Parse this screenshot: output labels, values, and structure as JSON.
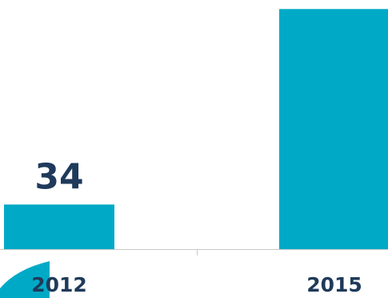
{
  "chart_data": {
    "type": "bar",
    "categories": [
      "2012",
      "2015"
    ],
    "values": [
      34,
      183
    ],
    "data_labels": [
      "34",
      ""
    ],
    "ylim": [
      0,
      185
    ],
    "grid": false,
    "legend": "none",
    "title": "",
    "xlabel": "",
    "ylabel": ""
  },
  "colors": {
    "bar": "#00aac7",
    "text": "#1f3a5a",
    "axis": "#c9c9c9",
    "decoration": "#00aac7"
  }
}
